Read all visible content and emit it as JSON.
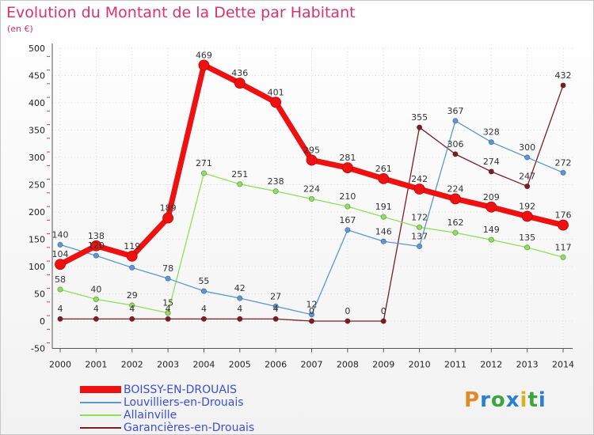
{
  "title": "Evolution du Montant de la Dette par Habitant",
  "unit": "(en €)",
  "logo": {
    "text": "Proxiti",
    "letter_colors": [
      "#e0892b",
      "#2a7fcf",
      "#3fa33f",
      "#2a7fcf",
      "#d6b21e",
      "#3fa33f",
      "#2a7fcf"
    ]
  },
  "chart_data": {
    "type": "line",
    "title": "Evolution du Montant de la Dette par Habitant",
    "ylabel": "(en €)",
    "xlabel": "",
    "categories": [
      "2000",
      "2001",
      "2002",
      "2003",
      "2004",
      "2005",
      "2006",
      "2007",
      "2008",
      "2009",
      "2010",
      "2011",
      "2012",
      "2013",
      "2014"
    ],
    "ylim": [
      -50,
      500
    ],
    "yticks": [
      "-50",
      "0",
      "50",
      "100",
      "150",
      "200",
      "250",
      "300",
      "350",
      "400",
      "450",
      "500"
    ],
    "grid": true,
    "legend_position": "bottom-left",
    "series": [
      {
        "name": "BOISSY-EN-DROUAIS",
        "color": "#ee1111",
        "values": [
          104,
          138,
          119,
          189,
          469,
          436,
          401,
          295,
          281,
          261,
          242,
          224,
          209,
          192,
          176
        ],
        "labels": [
          "104",
          "138",
          "119",
          "189",
          "469",
          "436",
          "401",
          "295",
          "281",
          "261",
          "242",
          "224",
          "209",
          "192",
          "176"
        ]
      },
      {
        "name": "Louvilliers-en-Drouais",
        "color": "#5b97d6",
        "values": [
          140,
          120,
          98,
          78,
          55,
          42,
          27,
          12,
          167,
          146,
          137,
          367,
          328,
          300,
          272
        ],
        "labels": [
          "140",
          "120",
          "",
          "78",
          "55",
          "42",
          "27",
          "12",
          "167",
          "146",
          "137",
          "367",
          "328",
          "300",
          "272"
        ]
      },
      {
        "name": "Allainville",
        "color": "#8ee05a",
        "values": [
          58,
          40,
          29,
          15,
          271,
          251,
          238,
          224,
          210,
          191,
          172,
          162,
          149,
          135,
          117
        ],
        "labels": [
          "58",
          "40",
          "29",
          "15",
          "271",
          "251",
          "238",
          "224",
          "210",
          "191",
          "172",
          "162",
          "149",
          "135",
          "117"
        ]
      },
      {
        "name": "Garancières-en-Drouais",
        "color": "#7b1e24",
        "values": [
          4,
          4,
          4,
          4,
          4,
          4,
          4,
          0,
          0,
          0,
          355,
          306,
          274,
          247,
          432
        ],
        "labels": [
          "4",
          "4",
          "4",
          "4",
          "4",
          "4",
          "4",
          "0",
          "0",
          "0",
          "355",
          "306",
          "274",
          "247",
          "432"
        ]
      }
    ]
  }
}
